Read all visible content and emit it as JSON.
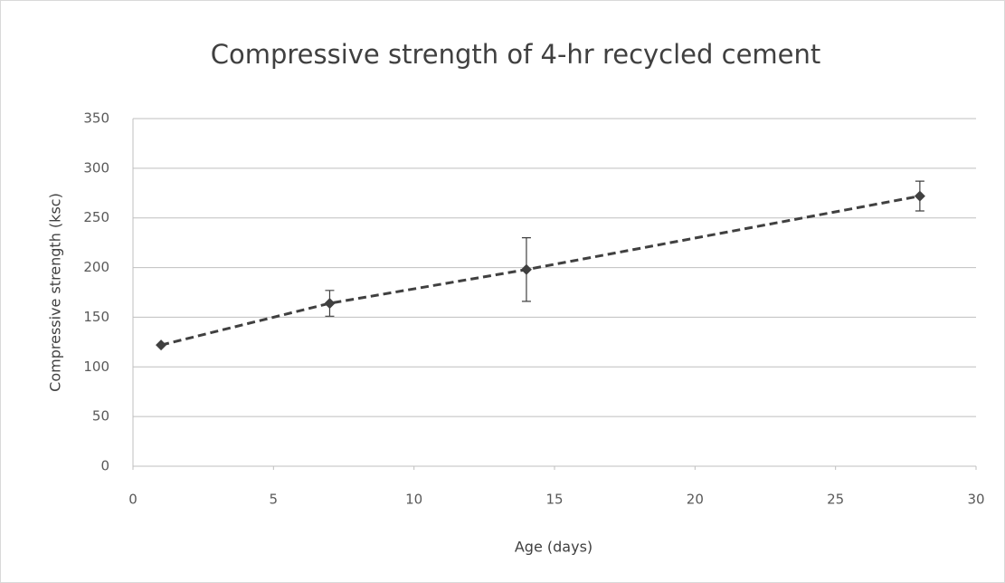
{
  "chart_data": {
    "type": "scatter",
    "title": "Compressive strength of 4-hr recycled cement",
    "x_label": "Age (days)",
    "y_label": "Compressive strength (ksc)",
    "x": [
      1,
      7,
      14,
      28
    ],
    "values": [
      122,
      164,
      198,
      272
    ],
    "errors": [
      0,
      13,
      32,
      15
    ],
    "color": "#404040",
    "line_style": "dashed",
    "xlim": [
      0,
      30
    ],
    "xticks": [
      0,
      5,
      10,
      15,
      20,
      25,
      30
    ],
    "ylim": [
      0,
      350
    ],
    "yticks": [
      0,
      50,
      100,
      150,
      200,
      250,
      300,
      350
    ],
    "grid": true
  }
}
